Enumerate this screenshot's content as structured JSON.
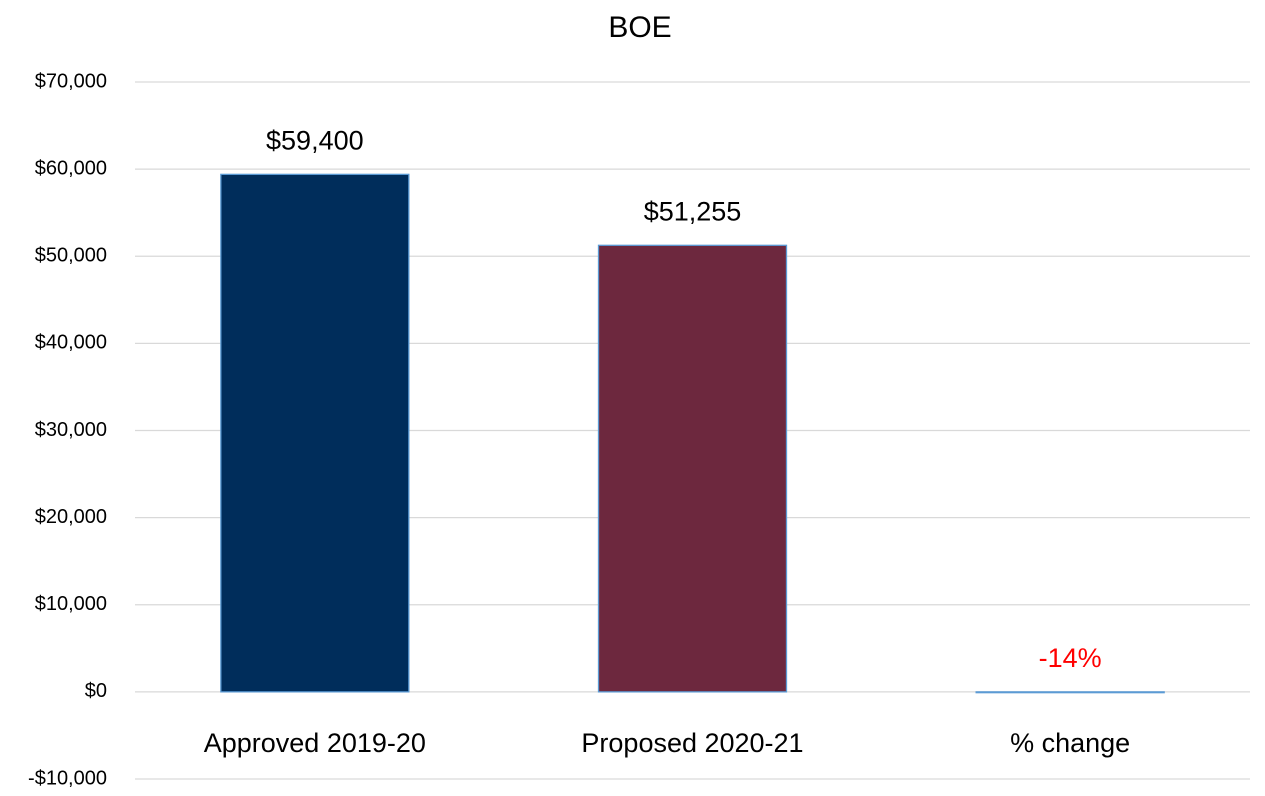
{
  "chart_data": {
    "type": "bar",
    "title": "BOE",
    "categories": [
      "Approved 2019-20",
      "Proposed 2020-21",
      "% change"
    ],
    "values": [
      59400,
      51255,
      -0.14
    ],
    "value_labels": [
      "$59,400",
      "$51,255",
      "-14%"
    ],
    "value_label_colors": [
      "#000000",
      "#000000",
      "#ff0000"
    ],
    "colors": [
      "#002d5b",
      "#6d283e",
      "#9dc3e6"
    ],
    "ylim": [
      -10000,
      70000
    ],
    "yticks": [
      {
        "value": -10000,
        "label": "-$10,000"
      },
      {
        "value": 0,
        "label": "$0"
      },
      {
        "value": 10000,
        "label": "$10,000"
      },
      {
        "value": 20000,
        "label": "$20,000"
      },
      {
        "value": 30000,
        "label": "$30,000"
      },
      {
        "value": 40000,
        "label": "$40,000"
      },
      {
        "value": 50000,
        "label": "$50,000"
      },
      {
        "value": 60000,
        "label": "$60,000"
      },
      {
        "value": 70000,
        "label": "$70,000"
      }
    ],
    "grid": true
  }
}
